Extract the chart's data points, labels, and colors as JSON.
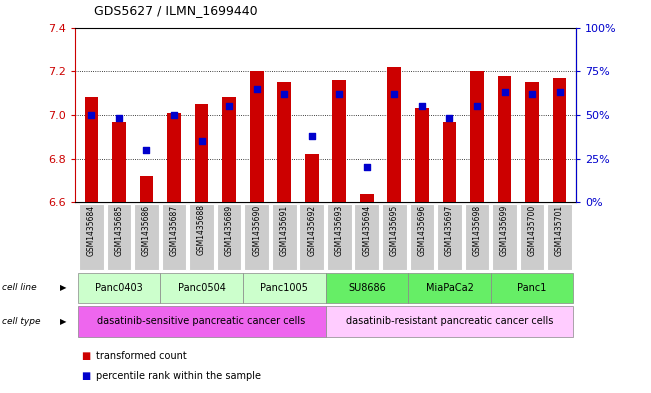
{
  "title": "GDS5627 / ILMN_1699440",
  "samples": [
    "GSM1435684",
    "GSM1435685",
    "GSM1435686",
    "GSM1435687",
    "GSM1435688",
    "GSM1435689",
    "GSM1435690",
    "GSM1435691",
    "GSM1435692",
    "GSM1435693",
    "GSM1435694",
    "GSM1435695",
    "GSM1435696",
    "GSM1435697",
    "GSM1435698",
    "GSM1435699",
    "GSM1435700",
    "GSM1435701"
  ],
  "all_transformed": [
    7.08,
    6.97,
    6.72,
    7.01,
    7.05,
    7.08,
    7.2,
    7.15,
    6.82,
    7.16,
    6.64,
    7.22,
    7.03,
    6.97,
    7.2,
    7.18,
    7.15,
    7.17
  ],
  "percentile": [
    50,
    48,
    30,
    50,
    35,
    55,
    65,
    62,
    38,
    62,
    20,
    62,
    55,
    48,
    55,
    63,
    62,
    63
  ],
  "ylim_left": [
    6.6,
    7.4
  ],
  "ylim_right": [
    0,
    100
  ],
  "yticks_left": [
    6.6,
    6.8,
    7.0,
    7.2,
    7.4
  ],
  "yticks_right": [
    0,
    25,
    50,
    75,
    100
  ],
  "ytick_labels_right": [
    "0%",
    "25%",
    "50%",
    "75%",
    "100%"
  ],
  "bar_color": "#cc0000",
  "scatter_color": "#0000cc",
  "bar_bottom": 6.6,
  "cell_lines": [
    {
      "label": "Panc0403",
      "start": 0,
      "end": 2,
      "color": "#ccffcc"
    },
    {
      "label": "Panc0504",
      "start": 3,
      "end": 5,
      "color": "#ccffcc"
    },
    {
      "label": "Panc1005",
      "start": 6,
      "end": 8,
      "color": "#ccffcc"
    },
    {
      "label": "SU8686",
      "start": 9,
      "end": 11,
      "color": "#66ee66"
    },
    {
      "label": "MiaPaCa2",
      "start": 12,
      "end": 14,
      "color": "#66ee66"
    },
    {
      "label": "Panc1",
      "start": 15,
      "end": 17,
      "color": "#66ee66"
    }
  ],
  "cell_types": [
    {
      "label": "dasatinib-sensitive pancreatic cancer cells",
      "start": 0,
      "end": 8,
      "color": "#ee66ee"
    },
    {
      "label": "dasatinib-resistant pancreatic cancer cells",
      "start": 9,
      "end": 17,
      "color": "#ffccff"
    }
  ],
  "left_axis_color": "#cc0000",
  "right_axis_color": "#0000cc",
  "tick_label_bg": "#dddddd",
  "sample_label_bg": "#cccccc"
}
